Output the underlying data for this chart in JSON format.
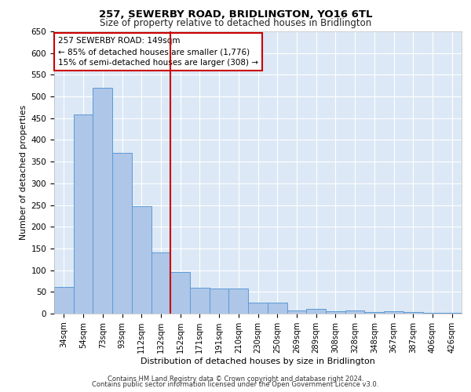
{
  "title1": "257, SEWERBY ROAD, BRIDLINGTON, YO16 6TL",
  "title2": "Size of property relative to detached houses in Bridlington",
  "xlabel": "Distribution of detached houses by size in Bridlington",
  "ylabel": "Number of detached properties",
  "categories": [
    "34sqm",
    "54sqm",
    "73sqm",
    "93sqm",
    "112sqm",
    "132sqm",
    "152sqm",
    "171sqm",
    "191sqm",
    "210sqm",
    "230sqm",
    "250sqm",
    "269sqm",
    "289sqm",
    "308sqm",
    "328sqm",
    "348sqm",
    "367sqm",
    "387sqm",
    "406sqm",
    "426sqm"
  ],
  "values": [
    62,
    458,
    520,
    370,
    248,
    140,
    95,
    60,
    58,
    57,
    26,
    25,
    8,
    10,
    5,
    8,
    4,
    5,
    3,
    2,
    2
  ],
  "bar_color": "#aec6e8",
  "bar_edge_color": "#5b9bd5",
  "vline_x": 5.5,
  "vline_color": "#cc0000",
  "annotation_line1": "257 SEWERBY ROAD: 149sqm",
  "annotation_line2": "← 85% of detached houses are smaller (1,776)",
  "annotation_line3": "15% of semi-detached houses are larger (308) →",
  "annotation_box_color": "#cc0000",
  "ylim": [
    0,
    650
  ],
  "yticks": [
    0,
    50,
    100,
    150,
    200,
    250,
    300,
    350,
    400,
    450,
    500,
    550,
    600,
    650
  ],
  "plot_bg_color": "#dce8f5",
  "footer1": "Contains HM Land Registry data © Crown copyright and database right 2024.",
  "footer2": "Contains public sector information licensed under the Open Government Licence v3.0."
}
